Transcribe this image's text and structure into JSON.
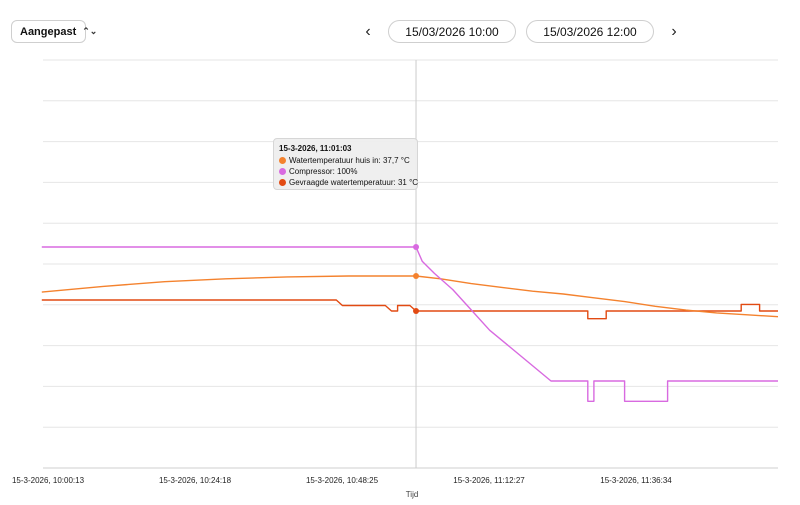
{
  "controls": {
    "preset_label": "Aangepast",
    "preset_icon": "updown-chevron-icon",
    "prev_icon": "chevron-left-icon",
    "next_icon": "chevron-right-icon",
    "start": "15/03/2026 10:00",
    "end": "15/03/2026 12:00"
  },
  "tooltip": {
    "title": "15-3-2026, 11:01:03",
    "rows": [
      {
        "text": "Watertemperatuur huis in: 37,7 °C",
        "color": "#f4822e"
      },
      {
        "text": "Compressor: 100%",
        "color": "#d86ae0"
      },
      {
        "text": "Gevraagde watertemperatuur: 31 °C",
        "color": "#e24a12"
      }
    ]
  },
  "chart_data": {
    "type": "line",
    "xlabel": "Tijd",
    "ylabel": "",
    "x_ticks": [
      "15-3-2026, 10:00:13",
      "15-3-2026, 10:24:18",
      "15-3-2026, 10:48:25",
      "15-3-2026, 11:12:27",
      "15-3-2026, 11:36:34"
    ],
    "grid": true,
    "y_axis_visible": false,
    "series": [
      {
        "name": "Watertemperatuur huis in",
        "unit": "°C",
        "color": "#f4822e",
        "points": [
          [
            "10:00",
            36.0
          ],
          [
            "10:10",
            36.6
          ],
          [
            "10:20",
            37.1
          ],
          [
            "10:30",
            37.4
          ],
          [
            "10:40",
            37.6
          ],
          [
            "10:50",
            37.7
          ],
          [
            "11:01",
            37.7
          ],
          [
            "11:05",
            37.4
          ],
          [
            "11:10",
            36.9
          ],
          [
            "11:15",
            36.5
          ],
          [
            "11:20",
            36.1
          ],
          [
            "11:25",
            35.8
          ],
          [
            "11:30",
            35.4
          ],
          [
            "11:35",
            35.0
          ],
          [
            "11:40",
            34.5
          ],
          [
            "11:45",
            34.1
          ],
          [
            "11:50",
            33.8
          ],
          [
            "11:55",
            33.6
          ],
          [
            "12:00",
            33.4
          ]
        ]
      },
      {
        "name": "Compressor",
        "unit": "%",
        "color": "#d86ae0",
        "points": [
          [
            "10:00",
            100
          ],
          [
            "11:01",
            100
          ],
          [
            "11:02",
            93
          ],
          [
            "11:04",
            87
          ],
          [
            "11:07",
            79
          ],
          [
            "11:10",
            69
          ],
          [
            "11:13",
            59
          ],
          [
            "11:17",
            49
          ],
          [
            "11:23",
            34
          ],
          [
            "11:29",
            34
          ],
          [
            "11:29",
            24
          ],
          [
            "11:30",
            24
          ],
          [
            "11:30",
            34
          ],
          [
            "11:35",
            34
          ],
          [
            "11:35",
            24
          ],
          [
            "11:42",
            24
          ],
          [
            "11:42",
            34
          ],
          [
            "12:00",
            34
          ]
        ]
      },
      {
        "name": "Gevraagde watertemperatuur",
        "unit": "°C",
        "color": "#e24a12",
        "points": [
          [
            "10:00",
            32
          ],
          [
            "10:48",
            32
          ],
          [
            "10:49",
            31.5
          ],
          [
            "10:56",
            31.5
          ],
          [
            "10:57",
            31
          ],
          [
            "10:58",
            31
          ],
          [
            "10:58",
            31.5
          ],
          [
            "11:00",
            31.5
          ],
          [
            "11:01",
            31
          ],
          [
            "11:29",
            31
          ],
          [
            "11:29",
            30.3
          ],
          [
            "11:32",
            30.3
          ],
          [
            "11:32",
            31
          ],
          [
            "11:54",
            31
          ],
          [
            "11:54",
            31.6
          ],
          [
            "11:57",
            31.6
          ],
          [
            "11:57",
            31
          ],
          [
            "12:00",
            31
          ]
        ]
      }
    ]
  }
}
